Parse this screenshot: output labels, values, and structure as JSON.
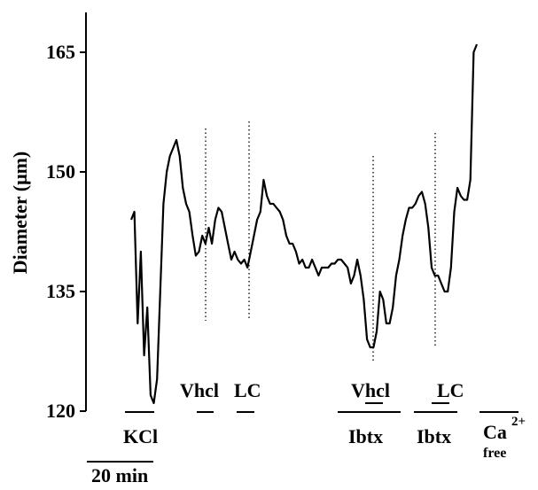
{
  "chart_data": {
    "type": "line",
    "y_label": "Diameter (μm)",
    "ylim": [
      120,
      170
    ],
    "yticks": [
      120,
      135,
      150,
      165
    ],
    "color": "#000000",
    "values": [
      144,
      145,
      131,
      140,
      127,
      133,
      122,
      121,
      124,
      135,
      146,
      150,
      152,
      153,
      154,
      152,
      148,
      146,
      145,
      142,
      139.5,
      140,
      142,
      141,
      143,
      141,
      144,
      145.5,
      145,
      143,
      141,
      139,
      140,
      139,
      138.5,
      139,
      138,
      140,
      142,
      144,
      145,
      149,
      147,
      146,
      146,
      145.5,
      145,
      144,
      142,
      141,
      141,
      140,
      138.5,
      139,
      138,
      138,
      139,
      138,
      137,
      138,
      138,
      138,
      138.5,
      138.5,
      139,
      139,
      138.5,
      138,
      136,
      137,
      139,
      137,
      134,
      129,
      128,
      128,
      130,
      135,
      134,
      131,
      131,
      133,
      137,
      139,
      142,
      144,
      145.5,
      145.5,
      146,
      147,
      147.5,
      146,
      143,
      138,
      137,
      137,
      136,
      135,
      135,
      138,
      145,
      148,
      147,
      146.5,
      146.5,
      149,
      165,
      166
    ],
    "annotations": {
      "kcl": "KCl",
      "vhcl_1": "Vhcl",
      "lc_1": "LC",
      "vhcl_2": "Vhcl",
      "lc_2": "LC",
      "ibtx_1": "Ibtx",
      "ibtx_2": "Ibtx",
      "ca": "Ca",
      "ca_charge": "2+",
      "ca_free": "free",
      "scale": "20 min"
    }
  }
}
